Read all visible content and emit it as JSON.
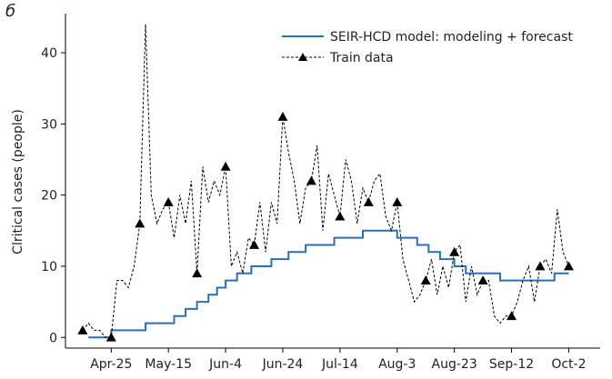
{
  "chart_data": {
    "type": "line",
    "panel_label": "б",
    "y_label": "Clritical cases (people)",
    "xlim": [
      "Apr-9",
      "Oct-13"
    ],
    "xticks": [
      "Apr-25",
      "May-15",
      "Jun-4",
      "Jun-24",
      "Jul-14",
      "Aug-3",
      "Aug-23",
      "Sep-12",
      "Oct-2"
    ],
    "ylim": [
      -1.5,
      45.5
    ],
    "yticks": [
      0,
      10,
      20,
      30,
      40
    ],
    "legend": "upper right",
    "series": [
      {
        "name": "SEIR-HCD model: modeling + forecast",
        "color": "#2a6fb5",
        "style": "step",
        "x": [
          "Apr-17",
          "Apr-25",
          "May-7",
          "May-17",
          "May-21",
          "May-25",
          "May-29",
          "Jun-1",
          "Jun-4",
          "Jun-8",
          "Jun-13",
          "Jun-20",
          "Jun-26",
          "Jul-2",
          "Jul-12",
          "Jul-22",
          "Aug-3",
          "Aug-10",
          "Aug-14",
          "Aug-18",
          "Aug-23",
          "Aug-27",
          "Sep-8",
          "Sep-27",
          "Oct-2"
        ],
        "values": [
          0,
          1,
          2,
          3,
          4,
          5,
          6,
          7,
          8,
          9,
          10,
          11,
          12,
          13,
          14,
          15,
          14,
          13,
          12,
          11,
          10,
          9,
          8,
          9,
          9
        ]
      },
      {
        "name": "Train data",
        "color": "#000000",
        "style": "dashed",
        "marker": "triangle",
        "marker_every": 5,
        "x": [
          "Apr-15",
          "Apr-17",
          "Apr-19",
          "Apr-21",
          "Apr-23",
          "Apr-25",
          "Apr-27",
          "Apr-29",
          "May-1",
          "May-3",
          "May-5",
          "May-7",
          "May-9",
          "May-11",
          "May-13",
          "May-15",
          "May-17",
          "May-19",
          "May-21",
          "May-23",
          "May-25",
          "May-27",
          "May-29",
          "May-31",
          "Jun-2",
          "Jun-4",
          "Jun-6",
          "Jun-8",
          "Jun-10",
          "Jun-12",
          "Jun-14",
          "Jun-16",
          "Jun-18",
          "Jun-20",
          "Jun-22",
          "Jun-24",
          "Jun-26",
          "Jun-28",
          "Jun-30",
          "Jul-2",
          "Jul-4",
          "Jul-6",
          "Jul-8",
          "Jul-10",
          "Jul-12",
          "Jul-14",
          "Jul-16",
          "Jul-18",
          "Jul-20",
          "Jul-22",
          "Jul-24",
          "Jul-26",
          "Jul-28",
          "Jul-30",
          "Aug-1",
          "Aug-3",
          "Aug-5",
          "Aug-7",
          "Aug-9",
          "Aug-11",
          "Aug-13",
          "Aug-15",
          "Aug-17",
          "Aug-19",
          "Aug-21",
          "Aug-23",
          "Aug-25",
          "Aug-27",
          "Aug-29",
          "Aug-31",
          "Sep-2",
          "Sep-4",
          "Sep-6",
          "Sep-8",
          "Sep-10",
          "Sep-12",
          "Sep-14",
          "Sep-16",
          "Sep-18",
          "Sep-20",
          "Sep-22",
          "Sep-24",
          "Sep-26",
          "Sep-28",
          "Sep-30",
          "Oct-2"
        ],
        "values": [
          1,
          2,
          1,
          1,
          0,
          0,
          8,
          8,
          7,
          10,
          16,
          44,
          20,
          16,
          18,
          19,
          14,
          20,
          16,
          22,
          9,
          24,
          19,
          22,
          20,
          24,
          10,
          12,
          9,
          14,
          13,
          19,
          12,
          19,
          16,
          31,
          26,
          22,
          16,
          21,
          22,
          27,
          15,
          23,
          20,
          17,
          25,
          22,
          16,
          21,
          19,
          22,
          23,
          17,
          15,
          19,
          11,
          8,
          5,
          6,
          8,
          11,
          6,
          10,
          7,
          12,
          13,
          5,
          10,
          6,
          8,
          8,
          3,
          2,
          3,
          3,
          5,
          8,
          10,
          5,
          10,
          11,
          9,
          18,
          12,
          10
        ]
      }
    ]
  }
}
